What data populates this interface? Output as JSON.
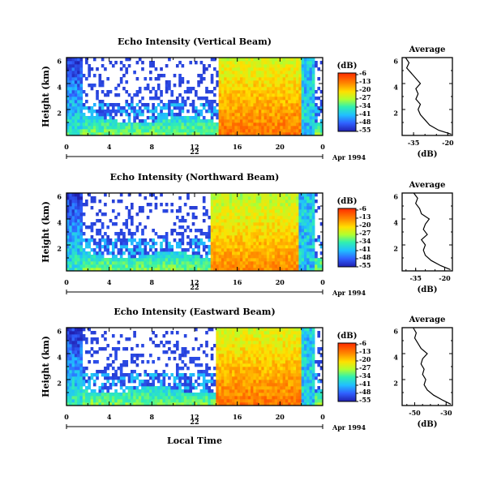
{
  "chart_data": [
    {
      "type": "heatmap",
      "title": "Echo Intensity (Vertical Beam)",
      "ylabel": "Height (km)",
      "yticks": [
        "2",
        "4",
        "6"
      ],
      "ylim": [
        0,
        6
      ],
      "xticks": [
        "0",
        "4",
        "8",
        "12",
        "16",
        "20",
        "0"
      ],
      "xlim": [
        0,
        24
      ],
      "date_day": "22",
      "date_label": "Apr 1994",
      "colorbar": {
        "unit": "(dB)",
        "levels": [
          "-6",
          "-13",
          "-20",
          "-27",
          "-34",
          "-41",
          "-48",
          "-55"
        ],
        "range": [
          -55,
          -6
        ]
      },
      "events": [
        {
          "start": 14.3,
          "end": 22.0,
          "intensity": -9
        },
        {
          "start": 22.0,
          "end": 23.3,
          "intensity": -40
        }
      ],
      "profile": {
        "title": "Average",
        "xlabel": "(dB)",
        "xticks": [
          "-35",
          "-20"
        ],
        "xlim": [
          -40,
          -18
        ],
        "ylim": [
          0,
          6
        ],
        "yticks": [
          "2",
          "4",
          "6"
        ],
        "points": [
          [
            -18.5,
            0.1
          ],
          [
            -24,
            0.4
          ],
          [
            -28,
            0.8
          ],
          [
            -30,
            1.2
          ],
          [
            -32,
            1.6
          ],
          [
            -33,
            2.0
          ],
          [
            -32,
            2.4
          ],
          [
            -34,
            2.8
          ],
          [
            -33,
            3.2
          ],
          [
            -34,
            3.6
          ],
          [
            -32,
            4.0
          ],
          [
            -34,
            4.4
          ],
          [
            -36,
            4.8
          ],
          [
            -38,
            5.2
          ],
          [
            -37,
            5.6
          ],
          [
            -38.5,
            6.0
          ]
        ]
      }
    },
    {
      "type": "heatmap",
      "title": "Echo Intensity (Northward Beam)",
      "ylabel": "Height (km)",
      "yticks": [
        "2",
        "4",
        "6"
      ],
      "ylim": [
        0,
        6
      ],
      "xticks": [
        "0",
        "4",
        "8",
        "12",
        "16",
        "20",
        "0"
      ],
      "xlim": [
        0,
        24
      ],
      "date_day": "22",
      "date_label": "Apr 1994",
      "colorbar": {
        "unit": "(dB)",
        "levels": [
          "-6",
          "-13",
          "-20",
          "-27",
          "-34",
          "-41",
          "-48",
          "-55"
        ],
        "range": [
          -55,
          -6
        ]
      },
      "events": [
        {
          "start": 13.6,
          "end": 21.8,
          "intensity": -11
        },
        {
          "start": 21.8,
          "end": 23.3,
          "intensity": -40
        }
      ],
      "profile": {
        "title": "Average",
        "xlabel": "(dB)",
        "xticks": [
          "-35",
          "-20"
        ],
        "xlim": [
          -42,
          -16
        ],
        "ylim": [
          0,
          6
        ],
        "yticks": [
          "2",
          "4",
          "6"
        ],
        "points": [
          [
            -17,
            0.1
          ],
          [
            -22,
            0.4
          ],
          [
            -27,
            0.8
          ],
          [
            -30,
            1.2
          ],
          [
            -31,
            1.6
          ],
          [
            -30,
            2.0
          ],
          [
            -32,
            2.4
          ],
          [
            -29,
            2.8
          ],
          [
            -31,
            3.2
          ],
          [
            -30,
            3.6
          ],
          [
            -28,
            4.0
          ],
          [
            -32,
            4.4
          ],
          [
            -33,
            4.8
          ],
          [
            -35,
            5.2
          ],
          [
            -34,
            5.6
          ],
          [
            -36,
            6.0
          ]
        ]
      }
    },
    {
      "type": "heatmap",
      "title": "Echo Intensity (Eastward Beam)",
      "ylabel": "Height (km)",
      "yticks": [
        "2",
        "4",
        "6"
      ],
      "ylim": [
        0,
        6
      ],
      "xticks": [
        "0",
        "4",
        "8",
        "12",
        "16",
        "20",
        "0"
      ],
      "xlim": [
        0,
        24
      ],
      "date_day": "22",
      "date_label": "Apr 1994",
      "xlabel": "Local Time",
      "colorbar": {
        "unit": "(dB)",
        "levels": [
          "-6",
          "-13",
          "-20",
          "-27",
          "-34",
          "-41",
          "-48",
          "-55"
        ],
        "range": [
          -55,
          -6
        ]
      },
      "events": [
        {
          "start": 14.0,
          "end": 22.0,
          "intensity": -9
        },
        {
          "start": 22.0,
          "end": 23.3,
          "intensity": -40
        }
      ],
      "profile": {
        "title": "Average",
        "xlabel": "(dB)",
        "xticks": [
          "-50",
          "-30"
        ],
        "xlim": [
          -58,
          -26
        ],
        "ylim": [
          0,
          6
        ],
        "yticks": [
          "2",
          "4",
          "6"
        ],
        "points": [
          [
            -27,
            0.1
          ],
          [
            -32,
            0.4
          ],
          [
            -38,
            0.8
          ],
          [
            -42,
            1.2
          ],
          [
            -44,
            1.6
          ],
          [
            -43,
            2.0
          ],
          [
            -45,
            2.4
          ],
          [
            -44,
            2.8
          ],
          [
            -46,
            3.2
          ],
          [
            -45,
            3.6
          ],
          [
            -42,
            4.0
          ],
          [
            -46,
            4.4
          ],
          [
            -48,
            4.8
          ],
          [
            -50,
            5.2
          ],
          [
            -49,
            5.6
          ],
          [
            -51,
            6.0
          ]
        ]
      }
    }
  ]
}
